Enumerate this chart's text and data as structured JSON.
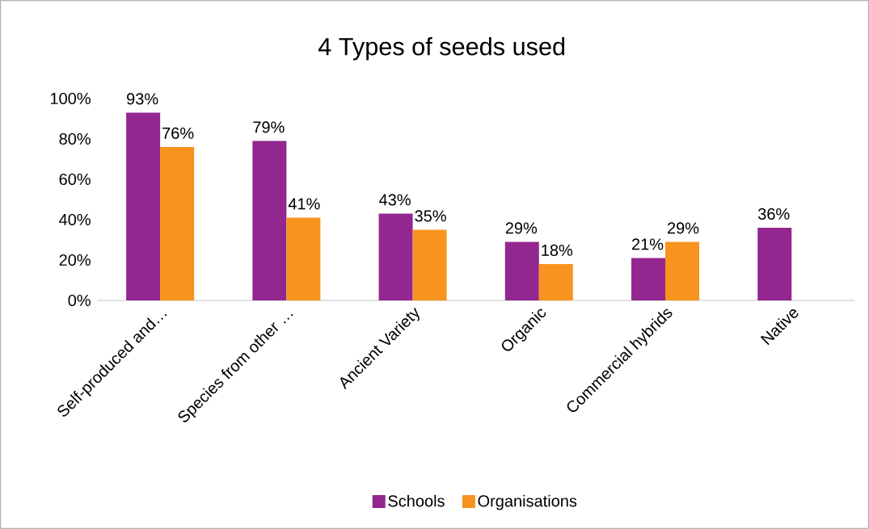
{
  "chart_data": {
    "type": "bar",
    "title": "4 Types of seeds used",
    "categories": [
      "Self-produced and…",
      "Species from other …",
      "Ancient Variety",
      "Organic",
      "Commercial hybrids",
      "Native"
    ],
    "series": [
      {
        "name": "Schools",
        "color": "#92278f",
        "values": [
          93,
          79,
          43,
          29,
          21,
          36
        ],
        "value_labels": [
          "93%",
          "79%",
          "43%",
          "29%",
          "21%",
          "36%"
        ]
      },
      {
        "name": "Organisations",
        "color": "#f7931e",
        "values": [
          76,
          41,
          35,
          18,
          29,
          null
        ],
        "value_labels": [
          "76%",
          "41%",
          "35%",
          "18%",
          "29%",
          null
        ]
      }
    ],
    "ylim": [
      0,
      100
    ],
    "yticks": [
      {
        "value": 0,
        "label": "0%"
      },
      {
        "value": 20,
        "label": "20%"
      },
      {
        "value": 40,
        "label": "40%"
      },
      {
        "value": 60,
        "label": "60%"
      },
      {
        "value": 80,
        "label": "80%"
      },
      {
        "value": 100,
        "label": "100%"
      }
    ],
    "legend": "bottom"
  }
}
